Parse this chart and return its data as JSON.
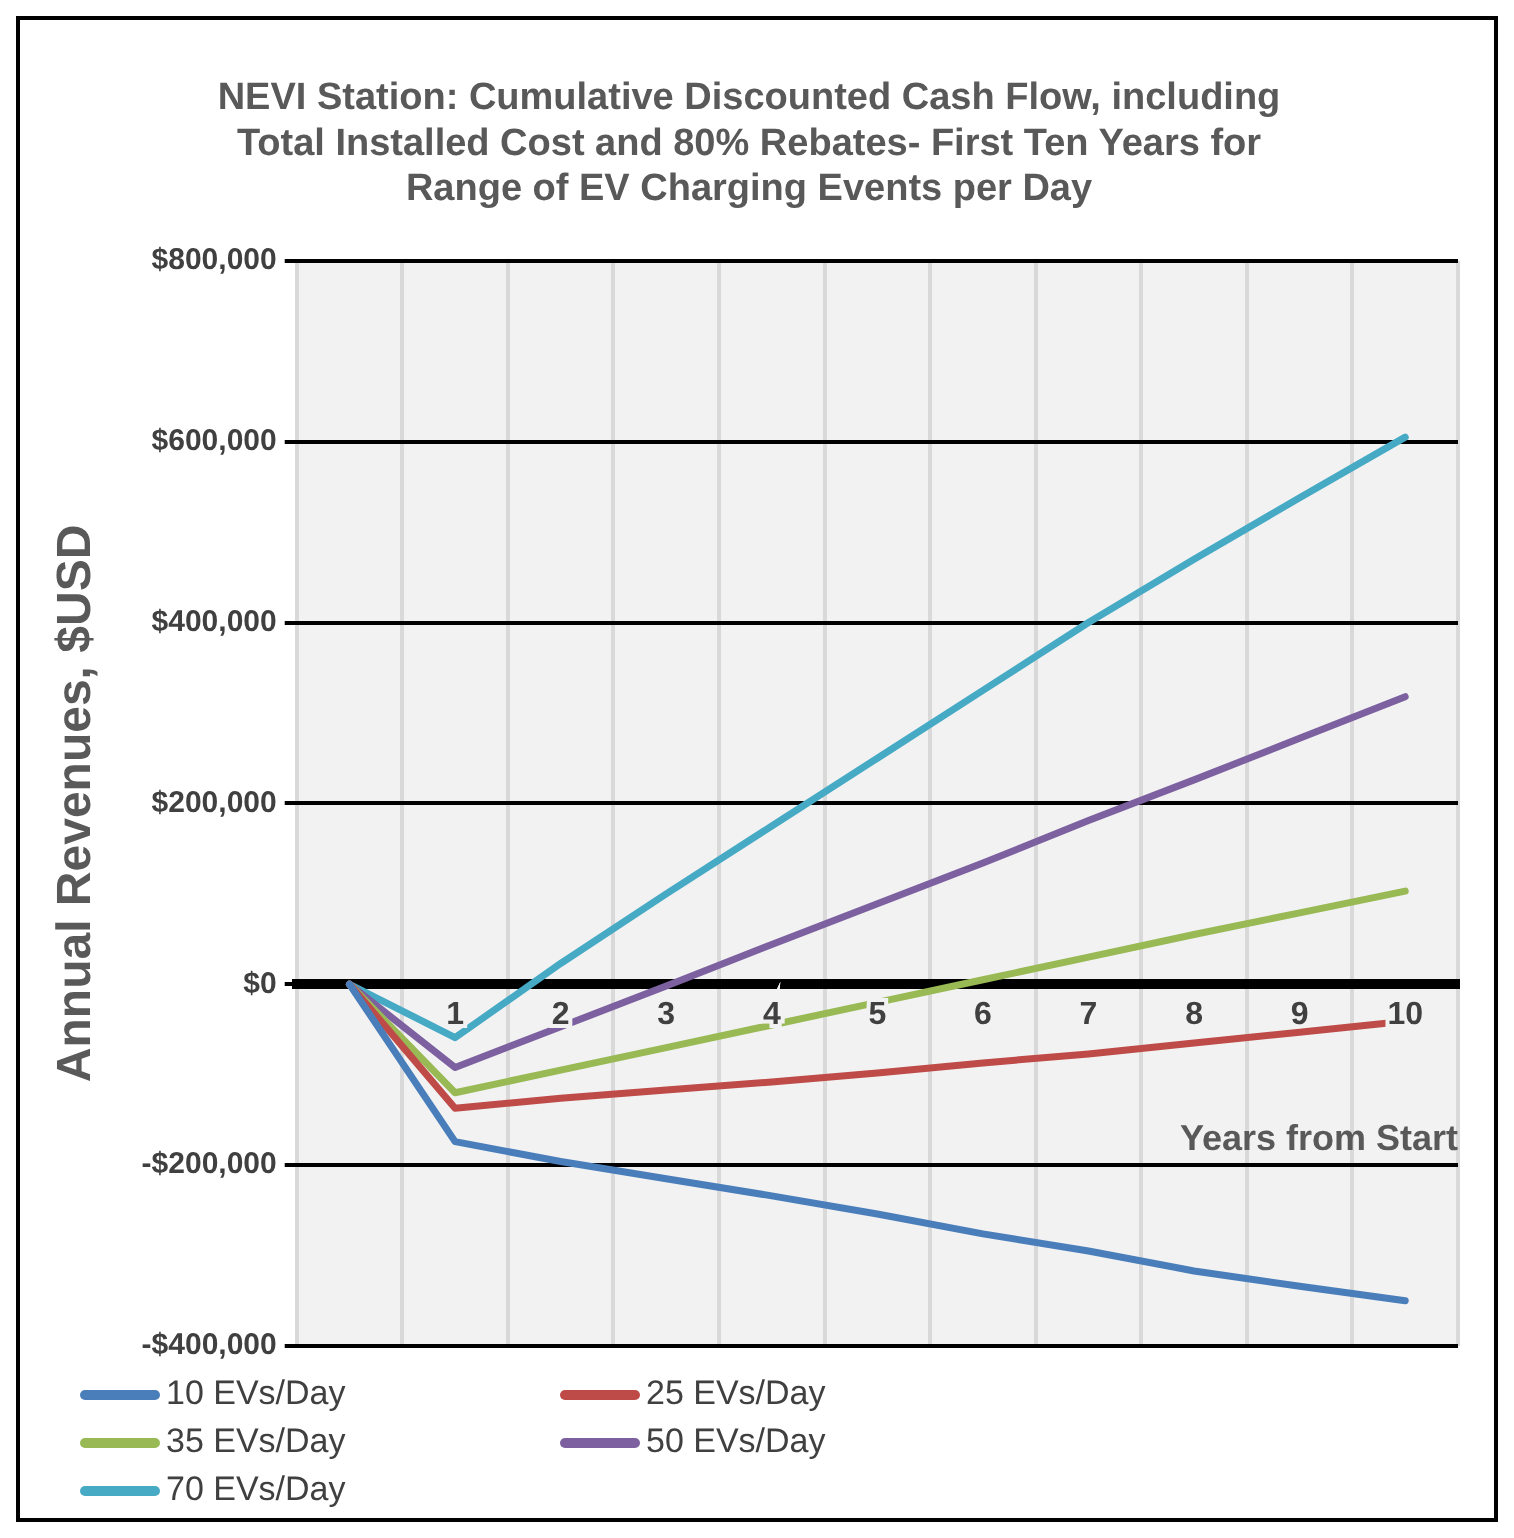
{
  "chart_data": {
    "type": "line",
    "title": "NEVI Station: Cumulative Discounted Cash Flow, including Total Installed Cost and 80% Rebates- First Ten Years for Range of EV Charging Events per Day",
    "xlabel": "Years from Start",
    "ylabel": "Annual Revenues, $USD",
    "categories": [
      null,
      "1",
      "2",
      "3",
      "4",
      "5",
      "6",
      "7",
      "8",
      "9",
      "10"
    ],
    "series": [
      {
        "name": "10 EVs/Day",
        "color": "#4a7ebb",
        "values": [
          0,
          -174000,
          -196000,
          -215000,
          -234000,
          -254000,
          -276000,
          -295000,
          -317000,
          -334000,
          -350000
        ]
      },
      {
        "name": "25 EVs/Day",
        "color": "#be4b48",
        "values": [
          0,
          -137000,
          -126000,
          -117000,
          -108000,
          -98000,
          -87000,
          -77000,
          -65000,
          -53000,
          -41000
        ]
      },
      {
        "name": "35 EVs/Day",
        "color": "#98b954",
        "values": [
          0,
          -120000,
          -95000,
          -70000,
          -45000,
          -20000,
          5000,
          30000,
          55000,
          79000,
          103000
        ]
      },
      {
        "name": "50 EVs/Day",
        "color": "#7d60a0",
        "values": [
          0,
          -92000,
          -47000,
          -2000,
          44000,
          89000,
          134000,
          181000,
          226000,
          272000,
          318000
        ]
      },
      {
        "name": "70 EVs/Day",
        "color": "#46aac5",
        "values": [
          0,
          -59000,
          23000,
          100000,
          175000,
          250000,
          325000,
          400000,
          470000,
          538000,
          605000
        ]
      }
    ],
    "ylim": [
      -400000,
      800000
    ],
    "yticks": [
      {
        "value": -400000,
        "label": "-$400,000"
      },
      {
        "value": -200000,
        "label": "-$200,000"
      },
      {
        "value": 0,
        "label": "$0"
      },
      {
        "value": 200000,
        "label": "$200,000"
      },
      {
        "value": 400000,
        "label": "$400,000"
      },
      {
        "value": 600000,
        "label": "$600,000"
      },
      {
        "value": 800000,
        "label": "$800,000"
      }
    ],
    "grid": true,
    "legend": "bottom",
    "marker": "none",
    "line_style": "solid"
  }
}
